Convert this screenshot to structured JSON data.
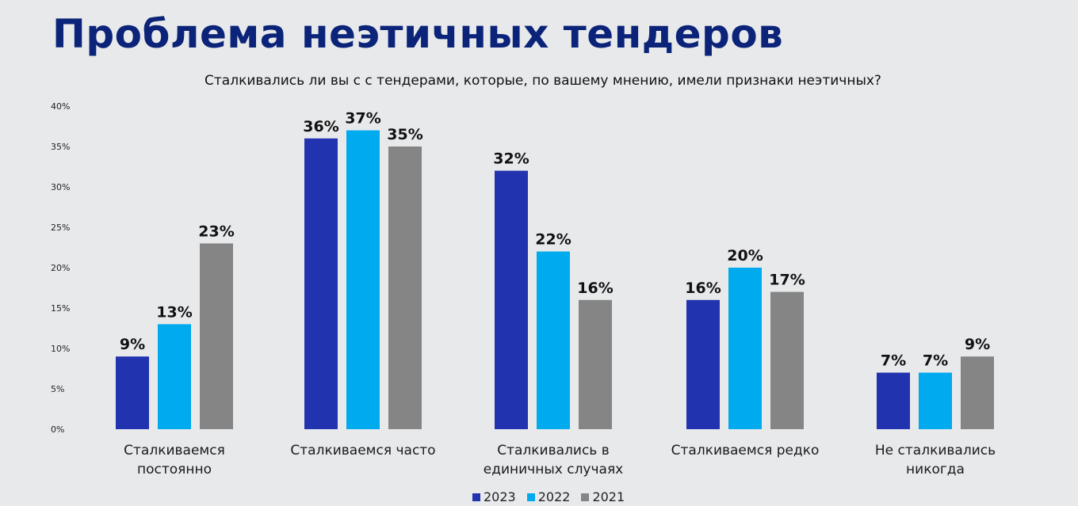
{
  "chart_data": {
    "type": "bar",
    "title": "Проблема неэтичных тендеров",
    "subtitle": "Сталкивались ли вы с с тендерами, которые, по вашему мнению, имели признаки неэтичных?",
    "categories": [
      [
        "Сталкиваемся",
        "постоянно"
      ],
      [
        "Сталкиваемся часто"
      ],
      [
        "Сталкивались в",
        "единичных случаях"
      ],
      [
        "Сталкиваемся редко"
      ],
      [
        "Не сталкивались",
        "никогда"
      ]
    ],
    "series": [
      {
        "name": "2023",
        "color": "#2233b0",
        "values": [
          9,
          36,
          32,
          16,
          7
        ]
      },
      {
        "name": "2022",
        "color": "#00aaee",
        "values": [
          13,
          37,
          22,
          20,
          7
        ]
      },
      {
        "name": "2021",
        "color": "#858585",
        "values": [
          23,
          35,
          16,
          17,
          9
        ]
      }
    ],
    "data_label_suffix": "%",
    "yticks": [
      "0%",
      "5%",
      "10%",
      "15%",
      "20%",
      "25%",
      "30%",
      "35%",
      "40%"
    ],
    "ylim": [
      0,
      40
    ],
    "grid": false,
    "legend_position": "bottom"
  }
}
